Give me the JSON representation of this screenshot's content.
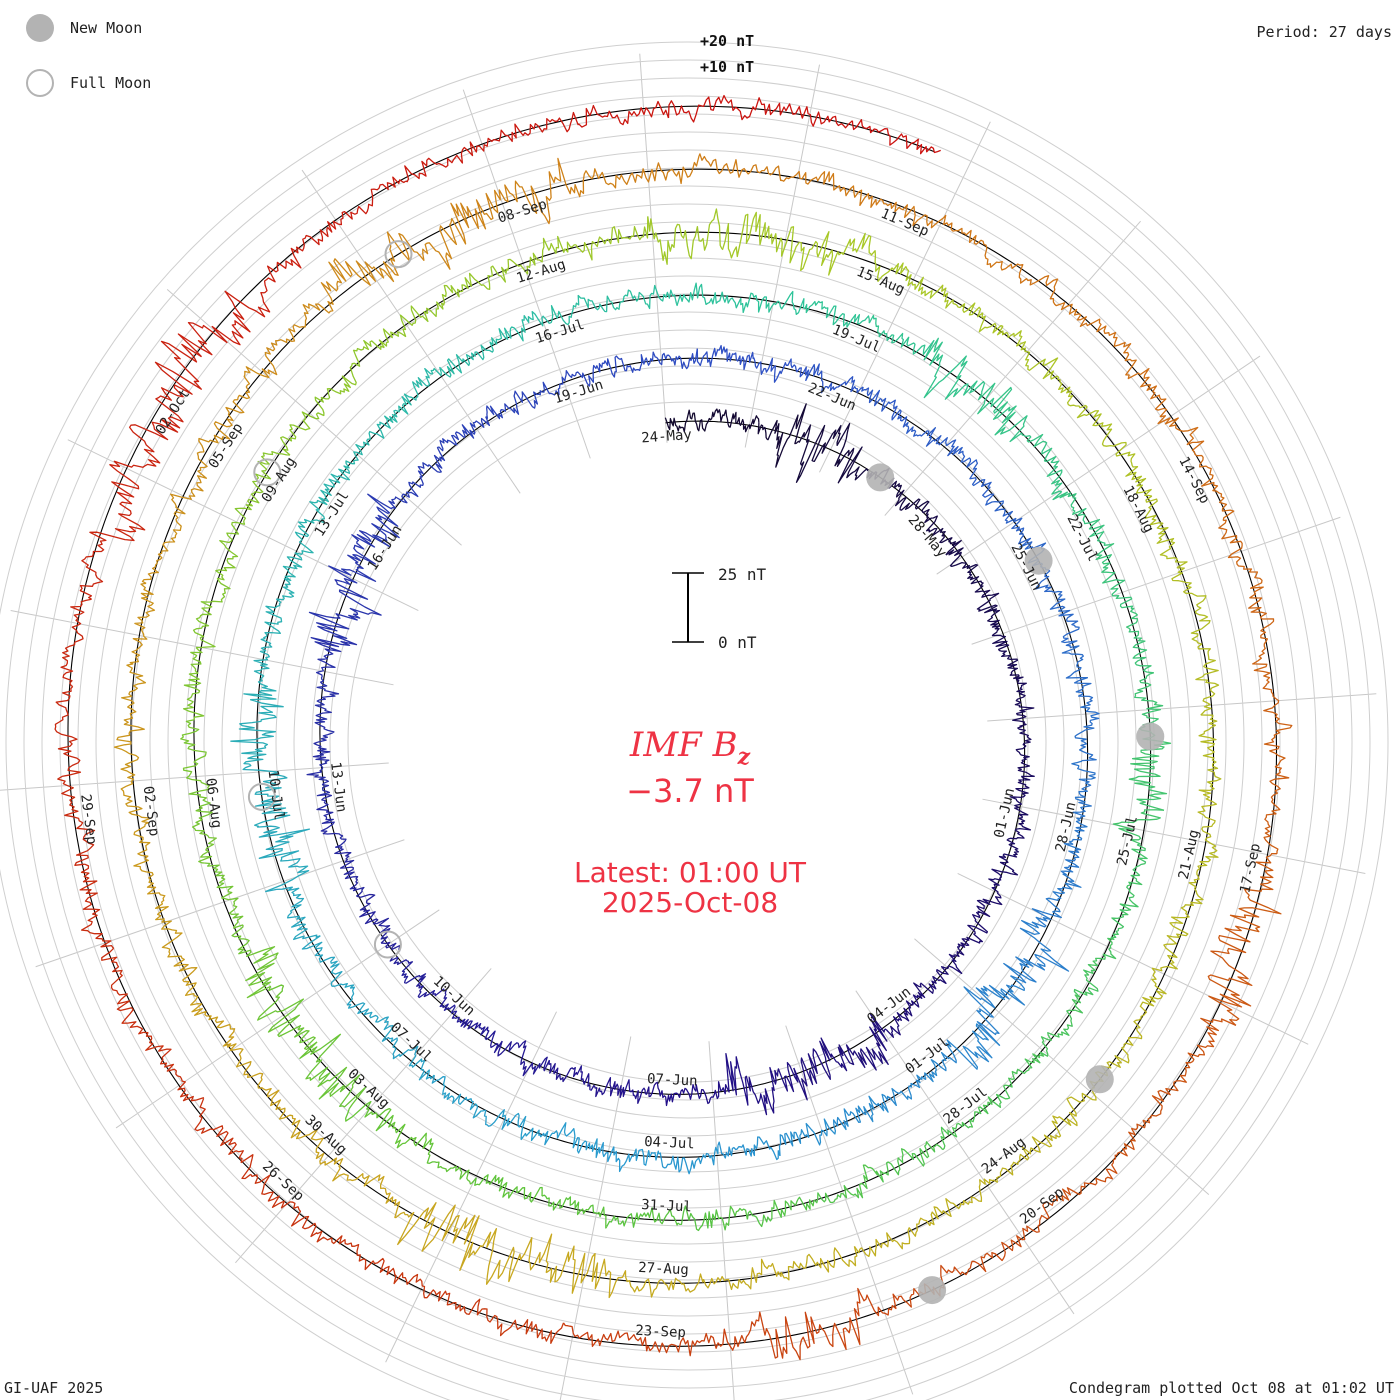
{
  "legend": {
    "new_moon": "New Moon",
    "full_moon": "Full Moon",
    "new_moon_color": "#b3b3b3",
    "full_moon_color": "#b3b3b3"
  },
  "period_label": "Period: 27 days",
  "footer_left": "GI-UAF 2025",
  "footer_right": "Condegram plotted Oct 08 at 01:02 UT",
  "center": {
    "quantity": "IMF B",
    "quantity_subscript": "z",
    "value": "−3.7 nT",
    "latest_line1": "Latest: 01:00 UT",
    "latest_line2": "2025-Oct-08",
    "text_color": "#ee3344"
  },
  "scale_bar": {
    "top_label": "25 nT",
    "bottom_label": "0 nT",
    "top_value": 25,
    "bottom_value": 0
  },
  "chart_data": {
    "type": "condegram",
    "period_days": 27,
    "field": "IMF Bz",
    "units": "nT",
    "start_date": "2025-05-24",
    "end_date": "2025-10-08",
    "latest_value": -3.7,
    "ring_labels": [
      "+20 nT",
      "+10 nT"
    ],
    "ring_values": [
      20,
      10
    ],
    "rotations": [
      {
        "start": "2025-05-24",
        "color": "#1a0a3c"
      },
      {
        "start": "2025-06-20",
        "color": "#2a1a8c"
      },
      {
        "start": "2025-07-17",
        "color": "#3a5fc8"
      },
      {
        "start": "2025-08-13",
        "color": "#2eb8a8"
      },
      {
        "start": "2025-09-09",
        "color": "#8fcc30"
      },
      {
        "start": "2025-10-06",
        "color": "#d88a1c"
      }
    ],
    "gradient_colors": [
      "#12082e",
      "#23108a",
      "#2f4fc4",
      "#2a9ad0",
      "#2ec49a",
      "#5cc43c",
      "#a8c828",
      "#c8a820",
      "#d07a18",
      "#c83810",
      "#cc1010"
    ],
    "date_ticks": [
      {
        "label": "24-May",
        "date": "2025-05-24"
      },
      {
        "label": "28-May",
        "date": "2025-05-28"
      },
      {
        "label": "01-Jun",
        "date": "2025-06-01"
      },
      {
        "label": "04-Jun",
        "date": "2025-06-04"
      },
      {
        "label": "07-Jun",
        "date": "2025-06-07"
      },
      {
        "label": "10-Jun",
        "date": "2025-06-10"
      },
      {
        "label": "13-Jun",
        "date": "2025-06-13"
      },
      {
        "label": "16-Jun",
        "date": "2025-06-16"
      },
      {
        "label": "19-Jun",
        "date": "2025-06-19"
      },
      {
        "label": "22-Jun",
        "date": "2025-06-22"
      },
      {
        "label": "25-Jun",
        "date": "2025-06-25"
      },
      {
        "label": "28-Jun",
        "date": "2025-06-28"
      },
      {
        "label": "01-Jul",
        "date": "2025-07-01"
      },
      {
        "label": "04-Jul",
        "date": "2025-07-04"
      },
      {
        "label": "07-Jul",
        "date": "2025-07-07"
      },
      {
        "label": "10-Jul",
        "date": "2025-07-10"
      },
      {
        "label": "13-Jul",
        "date": "2025-07-13"
      },
      {
        "label": "16-Jul",
        "date": "2025-07-16"
      },
      {
        "label": "19-Jul",
        "date": "2025-07-19"
      },
      {
        "label": "22-Jul",
        "date": "2025-07-22"
      },
      {
        "label": "25-Jul",
        "date": "2025-07-25"
      },
      {
        "label": "28-Jul",
        "date": "2025-07-28"
      },
      {
        "label": "31-Jul",
        "date": "2025-07-31"
      },
      {
        "label": "03-Aug",
        "date": "2025-08-03"
      },
      {
        "label": "06-Aug",
        "date": "2025-08-06"
      },
      {
        "label": "09-Aug",
        "date": "2025-08-09"
      },
      {
        "label": "12-Aug",
        "date": "2025-08-12"
      },
      {
        "label": "15-Aug",
        "date": "2025-08-15"
      },
      {
        "label": "18-Aug",
        "date": "2025-08-18"
      },
      {
        "label": "21-Aug",
        "date": "2025-08-21"
      },
      {
        "label": "24-Aug",
        "date": "2025-08-24"
      },
      {
        "label": "27-Aug",
        "date": "2025-08-27"
      },
      {
        "label": "30-Aug",
        "date": "2025-08-30"
      },
      {
        "label": "02-Sep",
        "date": "2025-09-02"
      },
      {
        "label": "05-Sep",
        "date": "2025-09-05"
      },
      {
        "label": "08-Sep",
        "date": "2025-09-08"
      },
      {
        "label": "11-Sep",
        "date": "2025-09-11"
      },
      {
        "label": "14-Sep",
        "date": "2025-09-14"
      },
      {
        "label": "17-Sep",
        "date": "2025-09-17"
      },
      {
        "label": "20-Sep",
        "date": "2025-09-20"
      },
      {
        "label": "23-Sep",
        "date": "2025-09-23"
      },
      {
        "label": "26-Sep",
        "date": "2025-09-26"
      },
      {
        "label": "29-Sep",
        "date": "2025-09-29"
      },
      {
        "label": "02-Oct",
        "date": "2025-10-02"
      }
    ],
    "new_moons": [
      "2025-05-27",
      "2025-06-25",
      "2025-07-24",
      "2025-08-23",
      "2025-09-21"
    ],
    "full_moons": [
      "2025-06-11",
      "2025-07-10",
      "2025-08-09",
      "2025-09-07"
    ]
  }
}
